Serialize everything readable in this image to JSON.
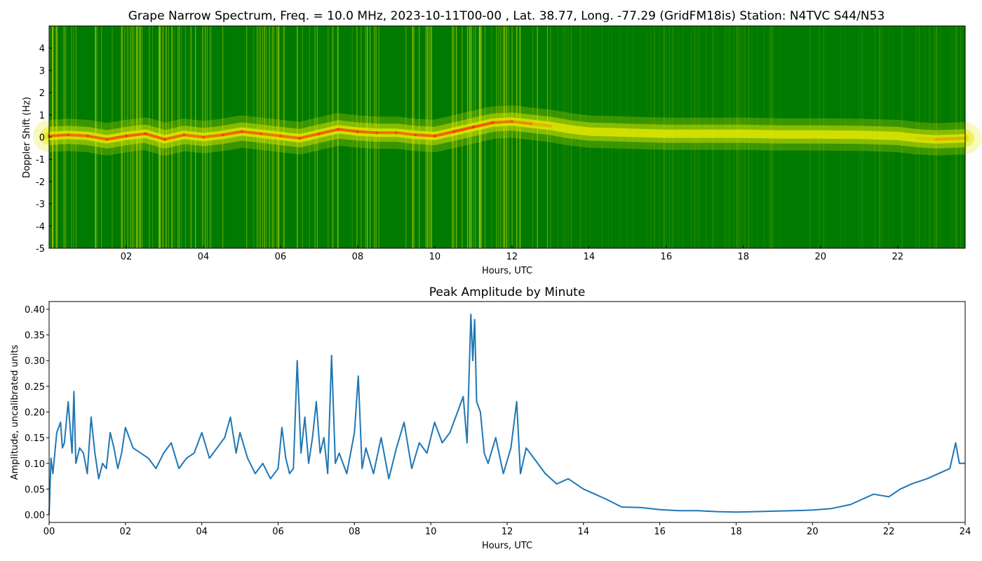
{
  "chart_data": [
    {
      "type": "heatmap",
      "title": "Grape Narrow Spectrum, Freq. = 10.0 MHz, 2023-10-11T00-00 , Lat.  38.77, Long. -77.29 (GridFM18is) Station: N4TVC S44/N53",
      "xlabel": "Hours, UTC",
      "ylabel": "Doppler Shift (Hz)",
      "xlim": [
        0,
        23.75
      ],
      "ylim": [
        -5,
        5
      ],
      "x_ticks": [
        2,
        4,
        6,
        8,
        10,
        12,
        14,
        16,
        18,
        20,
        22
      ],
      "x_tick_labels": [
        "02",
        "04",
        "06",
        "08",
        "10",
        "12",
        "14",
        "16",
        "18",
        "20",
        "22"
      ],
      "y_ticks": [
        -5,
        -4,
        -3,
        -2,
        -1,
        0,
        1,
        2,
        3,
        4
      ],
      "y_tick_labels": [
        "-5",
        "-4",
        "-3",
        "-2",
        "-1",
        "0",
        "1",
        "2",
        "3",
        "4"
      ],
      "colors": {
        "background": "#007a00",
        "mid": "#e3e800",
        "high": "#ff2200"
      },
      "doppler_trace": {
        "x": [
          0,
          0.5,
          1,
          1.5,
          2,
          2.5,
          3,
          3.5,
          4,
          4.5,
          5,
          5.5,
          6,
          6.5,
          7,
          7.5,
          8,
          8.5,
          9,
          9.5,
          10,
          10.5,
          11,
          11.5,
          12,
          12.5,
          13,
          13.5,
          14,
          15,
          16,
          17,
          18,
          19,
          20,
          21,
          22,
          22.5,
          23,
          23.75
        ],
        "y": [
          0.05,
          0.1,
          0.05,
          -0.1,
          0.05,
          0.15,
          -0.1,
          0.1,
          0.0,
          0.1,
          0.25,
          0.15,
          0.05,
          -0.05,
          0.15,
          0.35,
          0.25,
          0.2,
          0.2,
          0.1,
          0.05,
          0.25,
          0.45,
          0.65,
          0.7,
          0.6,
          0.5,
          0.35,
          0.25,
          0.2,
          0.15,
          0.15,
          0.15,
          0.12,
          0.12,
          0.1,
          0.05,
          -0.05,
          -0.1,
          -0.05
        ],
        "intensity": [
          0.9,
          0.9,
          0.85,
          0.95,
          0.9,
          0.95,
          0.9,
          0.9,
          0.85,
          0.9,
          0.95,
          0.85,
          0.85,
          0.9,
          0.9,
          0.95,
          0.9,
          0.9,
          0.85,
          0.9,
          0.9,
          0.95,
          1.0,
          0.9,
          0.85,
          0.75,
          0.65,
          0.55,
          0.5,
          0.4,
          0.35,
          0.35,
          0.35,
          0.35,
          0.35,
          0.35,
          0.45,
          0.6,
          0.7,
          0.75
        ]
      }
    },
    {
      "type": "line",
      "title": "Peak Amplitude by Minute",
      "xlabel": "Hours, UTC",
      "ylabel": "Amplitude, uncalibrated units",
      "xlim": [
        0,
        24
      ],
      "ylim": [
        -0.015,
        0.415
      ],
      "x_ticks": [
        0,
        2,
        4,
        6,
        8,
        10,
        12,
        14,
        16,
        18,
        20,
        22,
        24
      ],
      "x_tick_labels": [
        "00",
        "02",
        "04",
        "06",
        "08",
        "10",
        "12",
        "14",
        "16",
        "18",
        "20",
        "22",
        "24"
      ],
      "y_ticks": [
        0,
        0.05,
        0.1,
        0.15,
        0.2,
        0.25,
        0.3,
        0.35,
        0.4
      ],
      "y_tick_labels": [
        "0.00",
        "0.05",
        "0.10",
        "0.15",
        "0.20",
        "0.25",
        "0.30",
        "0.35",
        "0.40"
      ],
      "line_color": "#1f77b4",
      "x": [
        0,
        0.05,
        0.1,
        0.2,
        0.3,
        0.35,
        0.4,
        0.5,
        0.6,
        0.65,
        0.7,
        0.8,
        0.9,
        1.0,
        1.1,
        1.2,
        1.3,
        1.4,
        1.5,
        1.6,
        1.7,
        1.8,
        1.9,
        2.0,
        2.2,
        2.4,
        2.6,
        2.8,
        3.0,
        3.2,
        3.4,
        3.6,
        3.8,
        4.0,
        4.2,
        4.4,
        4.6,
        4.75,
        4.9,
        5.0,
        5.2,
        5.4,
        5.6,
        5.8,
        6.0,
        6.1,
        6.2,
        6.3,
        6.4,
        6.5,
        6.6,
        6.7,
        6.8,
        6.9,
        7.0,
        7.1,
        7.2,
        7.3,
        7.4,
        7.5,
        7.6,
        7.8,
        8.0,
        8.1,
        8.2,
        8.3,
        8.5,
        8.7,
        8.9,
        9.1,
        9.3,
        9.5,
        9.7,
        9.9,
        10.1,
        10.3,
        10.5,
        10.7,
        10.85,
        10.95,
        11.05,
        11.1,
        11.15,
        11.2,
        11.3,
        11.4,
        11.5,
        11.7,
        11.9,
        12.1,
        12.25,
        12.35,
        12.5,
        12.7,
        13.0,
        13.3,
        13.6,
        14.0,
        14.3,
        14.6,
        15.0,
        15.5,
        16.0,
        16.5,
        17.0,
        17.5,
        18.0,
        18.5,
        19.0,
        19.5,
        20.0,
        20.5,
        21.0,
        21.3,
        21.6,
        22.0,
        22.3,
        22.6,
        23.0,
        23.3,
        23.6,
        23.75,
        23.85,
        24.0
      ],
      "y": [
        0.0,
        0.11,
        0.08,
        0.16,
        0.18,
        0.13,
        0.14,
        0.22,
        0.12,
        0.24,
        0.1,
        0.13,
        0.12,
        0.08,
        0.19,
        0.12,
        0.07,
        0.1,
        0.09,
        0.16,
        0.13,
        0.09,
        0.12,
        0.17,
        0.13,
        0.12,
        0.11,
        0.09,
        0.12,
        0.14,
        0.09,
        0.11,
        0.12,
        0.16,
        0.11,
        0.13,
        0.15,
        0.19,
        0.12,
        0.16,
        0.11,
        0.08,
        0.1,
        0.07,
        0.09,
        0.17,
        0.11,
        0.08,
        0.09,
        0.3,
        0.12,
        0.19,
        0.1,
        0.15,
        0.22,
        0.12,
        0.15,
        0.08,
        0.31,
        0.1,
        0.12,
        0.08,
        0.16,
        0.27,
        0.09,
        0.13,
        0.08,
        0.15,
        0.07,
        0.13,
        0.18,
        0.09,
        0.14,
        0.12,
        0.18,
        0.14,
        0.16,
        0.2,
        0.23,
        0.14,
        0.39,
        0.3,
        0.38,
        0.22,
        0.2,
        0.12,
        0.1,
        0.15,
        0.08,
        0.13,
        0.22,
        0.08,
        0.13,
        0.11,
        0.08,
        0.06,
        0.07,
        0.05,
        0.04,
        0.03,
        0.015,
        0.014,
        0.01,
        0.008,
        0.008,
        0.006,
        0.005,
        0.006,
        0.007,
        0.008,
        0.009,
        0.012,
        0.02,
        0.03,
        0.04,
        0.035,
        0.05,
        0.06,
        0.07,
        0.08,
        0.09,
        0.14,
        0.1,
        0.1
      ]
    }
  ]
}
